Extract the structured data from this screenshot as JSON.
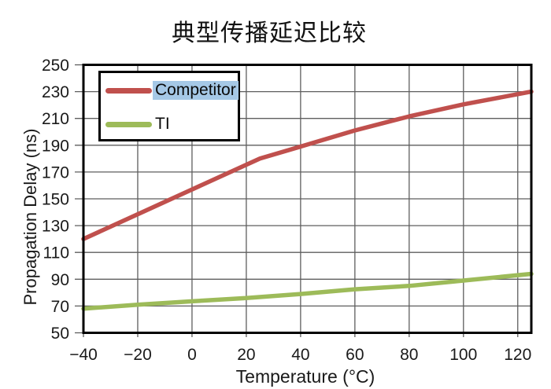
{
  "title": "典型传播延迟比较",
  "chart_data": {
    "type": "line",
    "title": "典型传播延迟比较",
    "xlabel": "Temperature (°C)",
    "ylabel": "Propagation Delay (ns)",
    "xlim": [
      -40,
      125
    ],
    "ylim": [
      50,
      250
    ],
    "x_ticks": [
      -40,
      -20,
      0,
      20,
      40,
      60,
      80,
      100,
      120
    ],
    "x_tick_labels": [
      "−40",
      "−20",
      "0",
      "20",
      "40",
      "60",
      "80",
      "100",
      "120"
    ],
    "y_ticks": [
      50,
      70,
      90,
      110,
      130,
      150,
      170,
      190,
      210,
      230,
      250
    ],
    "y_tick_labels": [
      "50",
      "70",
      "90",
      "110",
      "130",
      "150",
      "170",
      "190",
      "210",
      "230",
      "250"
    ],
    "grid": true,
    "legend_position": "top-left",
    "grid_color": "#5e5e5e",
    "axis_color": "#000000",
    "text_color": "#1a1a1a",
    "series": [
      {
        "name": "Competitor",
        "color": "#c0504d",
        "label_highlight": "#a5c8e6",
        "points": [
          [
            -40,
            120
          ],
          [
            -20,
            138.5
          ],
          [
            0,
            157
          ],
          [
            25,
            180
          ],
          [
            40,
            189
          ],
          [
            60,
            201
          ],
          [
            80,
            211.5
          ],
          [
            100,
            220.5
          ],
          [
            125,
            230
          ]
        ]
      },
      {
        "name": "TI",
        "color": "#9dbb59",
        "label_highlight": null,
        "points": [
          [
            -40,
            68
          ],
          [
            -20,
            71
          ],
          [
            0,
            73.5
          ],
          [
            20,
            76
          ],
          [
            40,
            79
          ],
          [
            60,
            82.5
          ],
          [
            80,
            85
          ],
          [
            100,
            89
          ],
          [
            125,
            94
          ]
        ]
      }
    ]
  }
}
